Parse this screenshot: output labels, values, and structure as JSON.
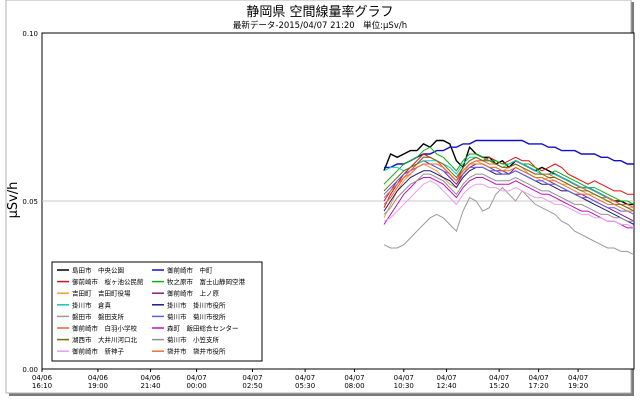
{
  "chart_data": {
    "type": "line",
    "title": "静岡県 空間線量率グラフ",
    "subtitle": "最新データ-2015/04/07 21:20　単位:μSv/h",
    "ylabel": "μSv/h",
    "ylim": [
      0,
      0.1
    ],
    "yticks": [
      "0.00",
      "0.05",
      "0.10"
    ],
    "grid": true,
    "legend_position": "bottom-left",
    "x_ticks": [
      {
        "date": "04/06",
        "time": "16:10",
        "pos": 0
      },
      {
        "date": "04/06",
        "time": "19:00",
        "pos": 17
      },
      {
        "date": "04/06",
        "time": "21:40",
        "pos": 33
      },
      {
        "date": "04/07",
        "time": "00:00",
        "pos": 47
      },
      {
        "date": "04/07",
        "time": "02:50",
        "pos": 64
      },
      {
        "date": "04/07",
        "time": "05:30",
        "pos": 80
      },
      {
        "date": "04/07",
        "time": "08:00",
        "pos": 95
      },
      {
        "date": "04/07",
        "time": "10:30",
        "pos": 110
      },
      {
        "date": "04/07",
        "time": "12:40",
        "pos": 123
      },
      {
        "date": "04/07",
        "time": "15:20",
        "pos": 139
      },
      {
        "date": "04/07",
        "time": "17:20",
        "pos": 151
      },
      {
        "date": "04/07",
        "time": "19:20",
        "pos": 163
      }
    ],
    "x_range": [
      0,
      180
    ],
    "x_positions": [
      104,
      106,
      108,
      110,
      112,
      114,
      116,
      118,
      120,
      122,
      124,
      126,
      128,
      130,
      132,
      134,
      136,
      138,
      140,
      142,
      144,
      146,
      148,
      150,
      152,
      154,
      156,
      158,
      160,
      162,
      164,
      166,
      168,
      170,
      172,
      174,
      176,
      178,
      180
    ],
    "series": [
      {
        "name": "島田市　中央公園",
        "color": "#000000",
        "values": [
          0.059,
          0.064,
          0.063,
          0.064,
          0.065,
          0.065,
          0.067,
          0.066,
          0.068,
          0.068,
          0.067,
          0.062,
          0.06,
          0.066,
          0.064,
          0.063,
          0.063,
          0.061,
          0.062,
          0.06,
          0.062,
          0.061,
          0.06,
          0.059,
          0.06,
          0.059,
          0.058,
          0.057,
          0.056,
          0.055,
          0.054,
          0.054,
          0.053,
          0.052,
          0.051,
          0.05,
          0.05,
          0.049,
          0.049
        ]
      },
      {
        "name": "御前崎市　中町",
        "color": "#1010c8",
        "values": [
          0.06,
          0.06,
          0.061,
          0.061,
          0.062,
          0.063,
          0.064,
          0.064,
          0.065,
          0.065,
          0.066,
          0.066,
          0.067,
          0.067,
          0.068,
          0.068,
          0.068,
          0.068,
          0.068,
          0.068,
          0.068,
          0.068,
          0.067,
          0.067,
          0.067,
          0.066,
          0.066,
          0.065,
          0.065,
          0.065,
          0.064,
          0.064,
          0.064,
          0.063,
          0.063,
          0.062,
          0.062,
          0.061,
          0.061
        ]
      },
      {
        "name": "御前崎市　桜ヶ池公民館",
        "color": "#e01010",
        "values": [
          0.048,
          0.052,
          0.055,
          0.058,
          0.06,
          0.062,
          0.064,
          0.063,
          0.062,
          0.06,
          0.058,
          0.056,
          0.06,
          0.062,
          0.063,
          0.062,
          0.063,
          0.062,
          0.061,
          0.062,
          0.063,
          0.062,
          0.062,
          0.06,
          0.059,
          0.06,
          0.061,
          0.06,
          0.058,
          0.057,
          0.056,
          0.055,
          0.056,
          0.055,
          0.054,
          0.053,
          0.053,
          0.052,
          0.052
        ]
      },
      {
        "name": "牧之原市　富士山静岡空港",
        "color": "#10b010",
        "values": [
          0.055,
          0.057,
          0.059,
          0.061,
          0.062,
          0.063,
          0.065,
          0.066,
          0.064,
          0.063,
          0.061,
          0.059,
          0.062,
          0.064,
          0.064,
          0.063,
          0.062,
          0.062,
          0.061,
          0.061,
          0.062,
          0.061,
          0.061,
          0.06,
          0.058,
          0.058,
          0.059,
          0.058,
          0.057,
          0.056,
          0.055,
          0.054,
          0.054,
          0.053,
          0.052,
          0.051,
          0.05,
          0.05,
          0.049
        ]
      },
      {
        "name": "吉田町　吉田町役場",
        "color": "#f0a040",
        "values": [
          0.045,
          0.049,
          0.053,
          0.056,
          0.058,
          0.06,
          0.061,
          0.06,
          0.059,
          0.057,
          0.055,
          0.054,
          0.058,
          0.061,
          0.062,
          0.061,
          0.06,
          0.06,
          0.059,
          0.06,
          0.061,
          0.06,
          0.058,
          0.057,
          0.056,
          0.057,
          0.056,
          0.055,
          0.055,
          0.054,
          0.053,
          0.052,
          0.052,
          0.051,
          0.05,
          0.05,
          0.049,
          0.048,
          0.048
        ]
      },
      {
        "name": "御前崎市　上ノ原",
        "color": "#8a1a8a",
        "values": [
          0.05,
          0.053,
          0.056,
          0.058,
          0.059,
          0.061,
          0.062,
          0.061,
          0.06,
          0.059,
          0.057,
          0.055,
          0.058,
          0.06,
          0.061,
          0.061,
          0.06,
          0.059,
          0.059,
          0.058,
          0.06,
          0.059,
          0.058,
          0.057,
          0.057,
          0.056,
          0.055,
          0.054,
          0.053,
          0.052,
          0.052,
          0.051,
          0.05,
          0.049,
          0.048,
          0.047,
          0.046,
          0.045,
          0.044
        ]
      },
      {
        "name": "掛川市　倉真",
        "color": "#10c8c8",
        "values": [
          0.059,
          0.06,
          0.06,
          0.059,
          0.06,
          0.061,
          0.062,
          0.062,
          0.062,
          0.061,
          0.06,
          0.058,
          0.061,
          0.063,
          0.063,
          0.062,
          0.062,
          0.061,
          0.06,
          0.061,
          0.062,
          0.061,
          0.06,
          0.059,
          0.058,
          0.058,
          0.058,
          0.057,
          0.056,
          0.055,
          0.054,
          0.054,
          0.053,
          0.052,
          0.051,
          0.05,
          0.049,
          0.048,
          0.047
        ]
      },
      {
        "name": "掛川市　掛川市役所",
        "color": "#1a1a80",
        "values": [
          0.047,
          0.05,
          0.053,
          0.055,
          0.057,
          0.058,
          0.059,
          0.059,
          0.058,
          0.057,
          0.056,
          0.054,
          0.057,
          0.059,
          0.06,
          0.06,
          0.059,
          0.058,
          0.058,
          0.058,
          0.059,
          0.058,
          0.057,
          0.056,
          0.055,
          0.055,
          0.054,
          0.053,
          0.053,
          0.052,
          0.051,
          0.05,
          0.049,
          0.048,
          0.047,
          0.046,
          0.045,
          0.044,
          0.043
        ]
      },
      {
        "name": "磐田市　磐田支所",
        "color": "#9a9a9a",
        "values": [
          0.037,
          0.036,
          0.036,
          0.037,
          0.039,
          0.041,
          0.043,
          0.045,
          0.046,
          0.045,
          0.043,
          0.041,
          0.047,
          0.051,
          0.05,
          0.047,
          0.048,
          0.052,
          0.054,
          0.052,
          0.05,
          0.053,
          0.051,
          0.049,
          0.048,
          0.047,
          0.046,
          0.044,
          0.043,
          0.041,
          0.04,
          0.039,
          0.038,
          0.037,
          0.036,
          0.036,
          0.035,
          0.035,
          0.034
        ]
      },
      {
        "name": "菊川市　菊川市役所",
        "color": "#6060e0",
        "values": [
          0.052,
          0.054,
          0.056,
          0.058,
          0.059,
          0.06,
          0.061,
          0.061,
          0.06,
          0.059,
          0.058,
          0.056,
          0.058,
          0.06,
          0.06,
          0.06,
          0.059,
          0.059,
          0.058,
          0.058,
          0.059,
          0.058,
          0.057,
          0.056,
          0.056,
          0.055,
          0.055,
          0.054,
          0.053,
          0.052,
          0.051,
          0.051,
          0.05,
          0.049,
          0.048,
          0.048,
          0.047,
          0.047,
          0.046
        ]
      },
      {
        "name": "御前崎市　白羽小学校",
        "color": "#f06040",
        "values": [
          0.049,
          0.051,
          0.054,
          0.057,
          0.059,
          0.061,
          0.063,
          0.063,
          0.062,
          0.06,
          0.058,
          0.056,
          0.059,
          0.061,
          0.062,
          0.062,
          0.061,
          0.061,
          0.06,
          0.06,
          0.061,
          0.06,
          0.059,
          0.058,
          0.058,
          0.058,
          0.057,
          0.056,
          0.055,
          0.054,
          0.054,
          0.053,
          0.052,
          0.051,
          0.051,
          0.05,
          0.049,
          0.049,
          0.048
        ]
      },
      {
        "name": "森町　飯田総合センター",
        "color": "#c010c0",
        "values": [
          0.043,
          0.046,
          0.049,
          0.052,
          0.054,
          0.056,
          0.057,
          0.057,
          0.056,
          0.055,
          0.053,
          0.051,
          0.054,
          0.056,
          0.057,
          0.057,
          0.056,
          0.055,
          0.055,
          0.055,
          0.056,
          0.055,
          0.054,
          0.053,
          0.052,
          0.052,
          0.051,
          0.05,
          0.049,
          0.048,
          0.047,
          0.047,
          0.046,
          0.045,
          0.044,
          0.044,
          0.043,
          0.042,
          0.042
        ]
      },
      {
        "name": "湖西市　大井川河口北",
        "color": "#707010",
        "values": [
          0.053,
          0.055,
          0.057,
          0.059,
          0.06,
          0.061,
          0.063,
          0.063,
          0.062,
          0.061,
          0.059,
          0.057,
          0.06,
          0.062,
          0.063,
          0.062,
          0.062,
          0.061,
          0.06,
          0.06,
          0.061,
          0.06,
          0.059,
          0.058,
          0.058,
          0.057,
          0.057,
          0.056,
          0.055,
          0.054,
          0.053,
          0.053,
          0.052,
          0.051,
          0.05,
          0.049,
          0.049,
          0.048,
          0.047
        ]
      },
      {
        "name": "菊川市　小笠支所",
        "color": "#909090",
        "values": [
          0.046,
          0.048,
          0.051,
          0.053,
          0.055,
          0.056,
          0.058,
          0.058,
          0.057,
          0.056,
          0.054,
          0.052,
          0.055,
          0.057,
          0.058,
          0.058,
          0.057,
          0.056,
          0.056,
          0.056,
          0.057,
          0.056,
          0.055,
          0.054,
          0.053,
          0.053,
          0.052,
          0.051,
          0.05,
          0.049,
          0.049,
          0.048,
          0.047,
          0.046,
          0.046,
          0.045,
          0.045,
          0.044,
          0.044
        ]
      },
      {
        "name": "御前崎市　新神子",
        "color": "#e8a0e8",
        "values": [
          0.044,
          0.045,
          0.047,
          0.049,
          0.051,
          0.053,
          0.055,
          0.056,
          0.055,
          0.053,
          0.051,
          0.049,
          0.052,
          0.054,
          0.055,
          0.055,
          0.054,
          0.054,
          0.053,
          0.053,
          0.054,
          0.053,
          0.052,
          0.051,
          0.051,
          0.05,
          0.049,
          0.049,
          0.048,
          0.047,
          0.046,
          0.046,
          0.045,
          0.045,
          0.044,
          0.044,
          0.043,
          0.043,
          0.042
        ]
      },
      {
        "name": "袋井市　袋井市役所",
        "color": "#f07030",
        "values": [
          0.051,
          0.053,
          0.055,
          0.057,
          0.058,
          0.06,
          0.061,
          0.061,
          0.061,
          0.06,
          0.058,
          0.056,
          0.059,
          0.061,
          0.061,
          0.061,
          0.06,
          0.06,
          0.059,
          0.059,
          0.06,
          0.059,
          0.058,
          0.057,
          0.057,
          0.056,
          0.056,
          0.055,
          0.054,
          0.053,
          0.052,
          0.052,
          0.051,
          0.05,
          0.049,
          0.049,
          0.048,
          0.047,
          0.047
        ]
      }
    ]
  }
}
